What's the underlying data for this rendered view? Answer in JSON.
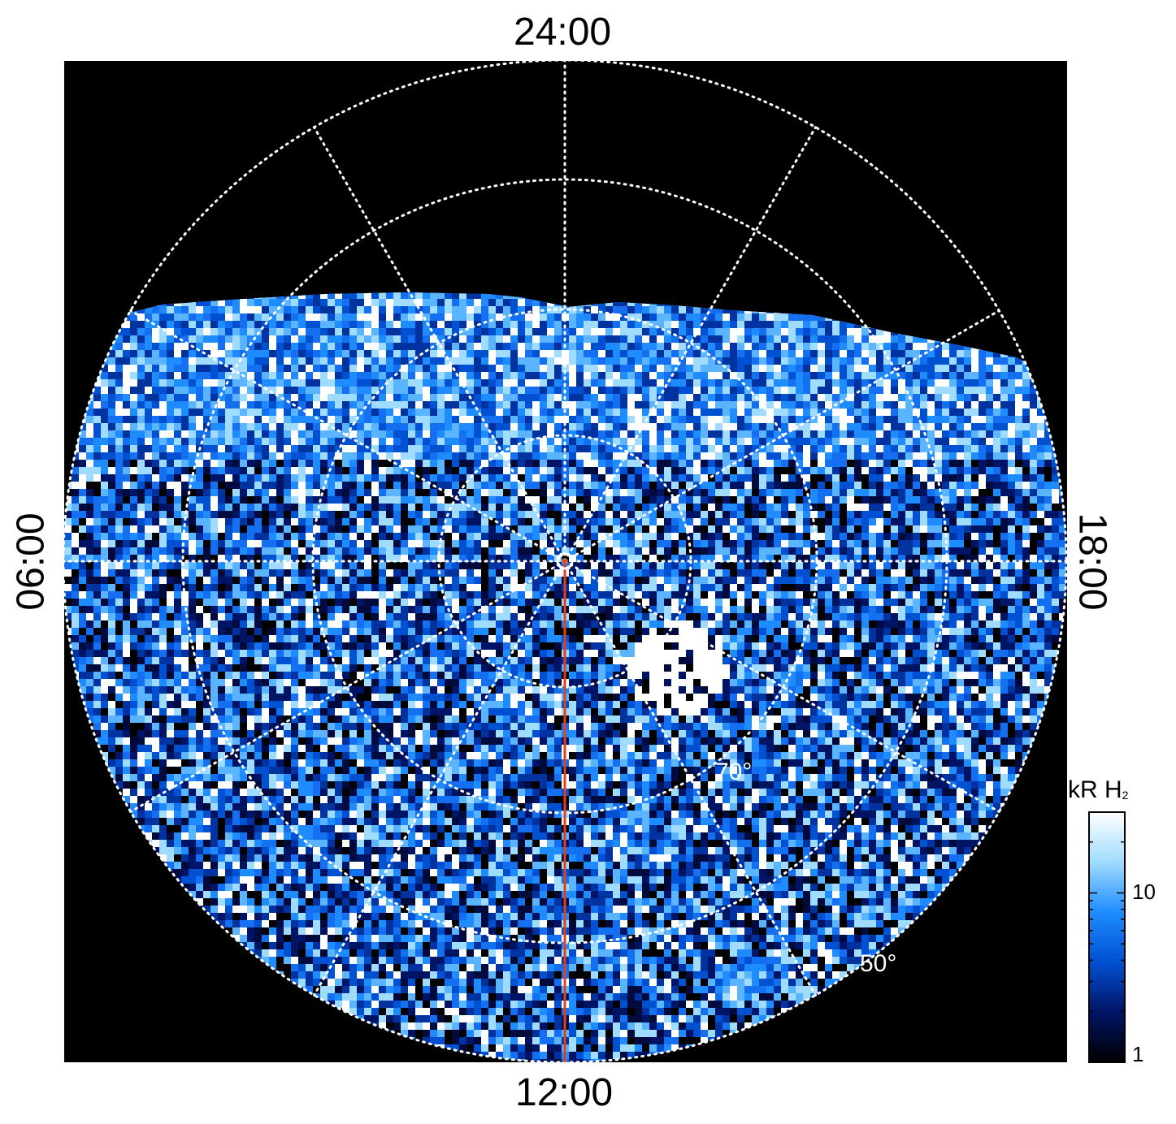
{
  "figure": {
    "hour_labels": {
      "top": "24:00",
      "bottom": "12:00",
      "left": "06:00",
      "right": "18:00"
    },
    "latitude_labels": [
      "70°",
      "50°"
    ],
    "colorbar": {
      "title": "kR H",
      "title_subscript": "2",
      "scale": "log",
      "range": [
        1,
        30
      ],
      "ticks": [
        "10",
        "1"
      ],
      "colors": [
        "#000000",
        "#001466",
        "#0050d2",
        "#1e8cff",
        "#a0dcff",
        "#ffffff"
      ]
    },
    "colors": {
      "background": "#000000",
      "grid": "#ffffff",
      "meridian_line": "#e0401a",
      "page": "#ffffff"
    }
  }
}
